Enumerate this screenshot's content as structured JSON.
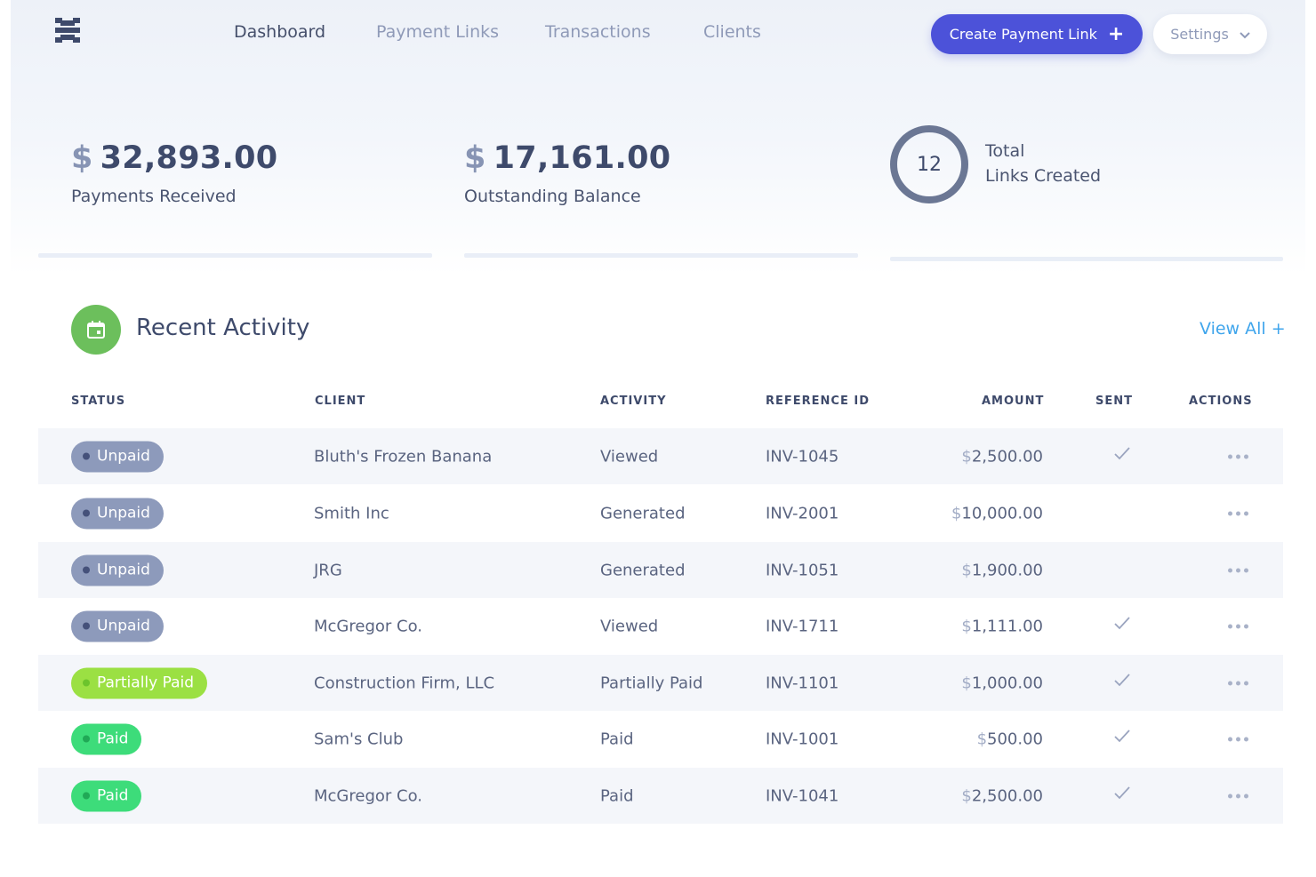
{
  "nav": {
    "items": [
      {
        "label": "Dashboard",
        "active": true
      },
      {
        "label": "Payment Links",
        "active": false
      },
      {
        "label": "Transactions",
        "active": false
      },
      {
        "label": "Clients",
        "active": false
      }
    ],
    "create_button": "Create Payment Link",
    "settings_button": "Settings"
  },
  "stats": {
    "payments_received": {
      "currency": "$",
      "amount": "32,893.00",
      "label": "Payments Received"
    },
    "outstanding_balance": {
      "currency": "$",
      "amount": "17,161.00",
      "label": "Outstanding Balance"
    },
    "links_created": {
      "count": "12",
      "label_line1": "Total",
      "label_line2": "Links Created"
    }
  },
  "recent_activity": {
    "title": "Recent Activity",
    "view_all": "View All +",
    "columns": {
      "status": "STATUS",
      "client": "CLIENT",
      "activity": "ACTIVITY",
      "reference_id": "REFERENCE ID",
      "amount": "AMOUNT",
      "sent": "SENT",
      "actions": "ACTIONS"
    },
    "rows": [
      {
        "status": "Unpaid",
        "client": "Bluth's Frozen Banana",
        "activity": "Viewed",
        "reference_id": "INV-1045",
        "amount": "2,500.00",
        "sent": true
      },
      {
        "status": "Unpaid",
        "client": "Smith Inc",
        "activity": "Generated",
        "reference_id": "INV-2001",
        "amount": "10,000.00",
        "sent": false
      },
      {
        "status": "Unpaid",
        "client": "JRG",
        "activity": "Generated",
        "reference_id": "INV-1051",
        "amount": "1,900.00",
        "sent": false
      },
      {
        "status": "Unpaid",
        "client": "McGregor Co.",
        "activity": "Viewed",
        "reference_id": "INV-1711",
        "amount": "1,111.00",
        "sent": true
      },
      {
        "status": "Partially Paid",
        "client": "Construction Firm, LLC",
        "activity": "Partially Paid",
        "reference_id": "INV-1101",
        "amount": "1,000.00",
        "sent": true
      },
      {
        "status": "Paid",
        "client": "Sam's Club",
        "activity": "Paid",
        "reference_id": "INV-1001",
        "amount": "500.00",
        "sent": true
      },
      {
        "status": "Paid",
        "client": "McGregor Co.",
        "activity": "Paid",
        "reference_id": "INV-1041",
        "amount": "2,500.00",
        "sent": true
      }
    ]
  },
  "colors": {
    "primary": "#4c52d9",
    "link": "#3fa5ec",
    "unpaid": "#8d9abb",
    "partially_paid": "#9be043",
    "paid": "#3ddc7a",
    "activity_icon": "#6cbf5c"
  },
  "icons": {
    "logo": "app-logo-icon",
    "create": "plus-icon",
    "settings": "chevron-down-icon",
    "recent_activity": "calendar-icon",
    "sent": "check-icon",
    "actions": "more-dots-icon"
  }
}
